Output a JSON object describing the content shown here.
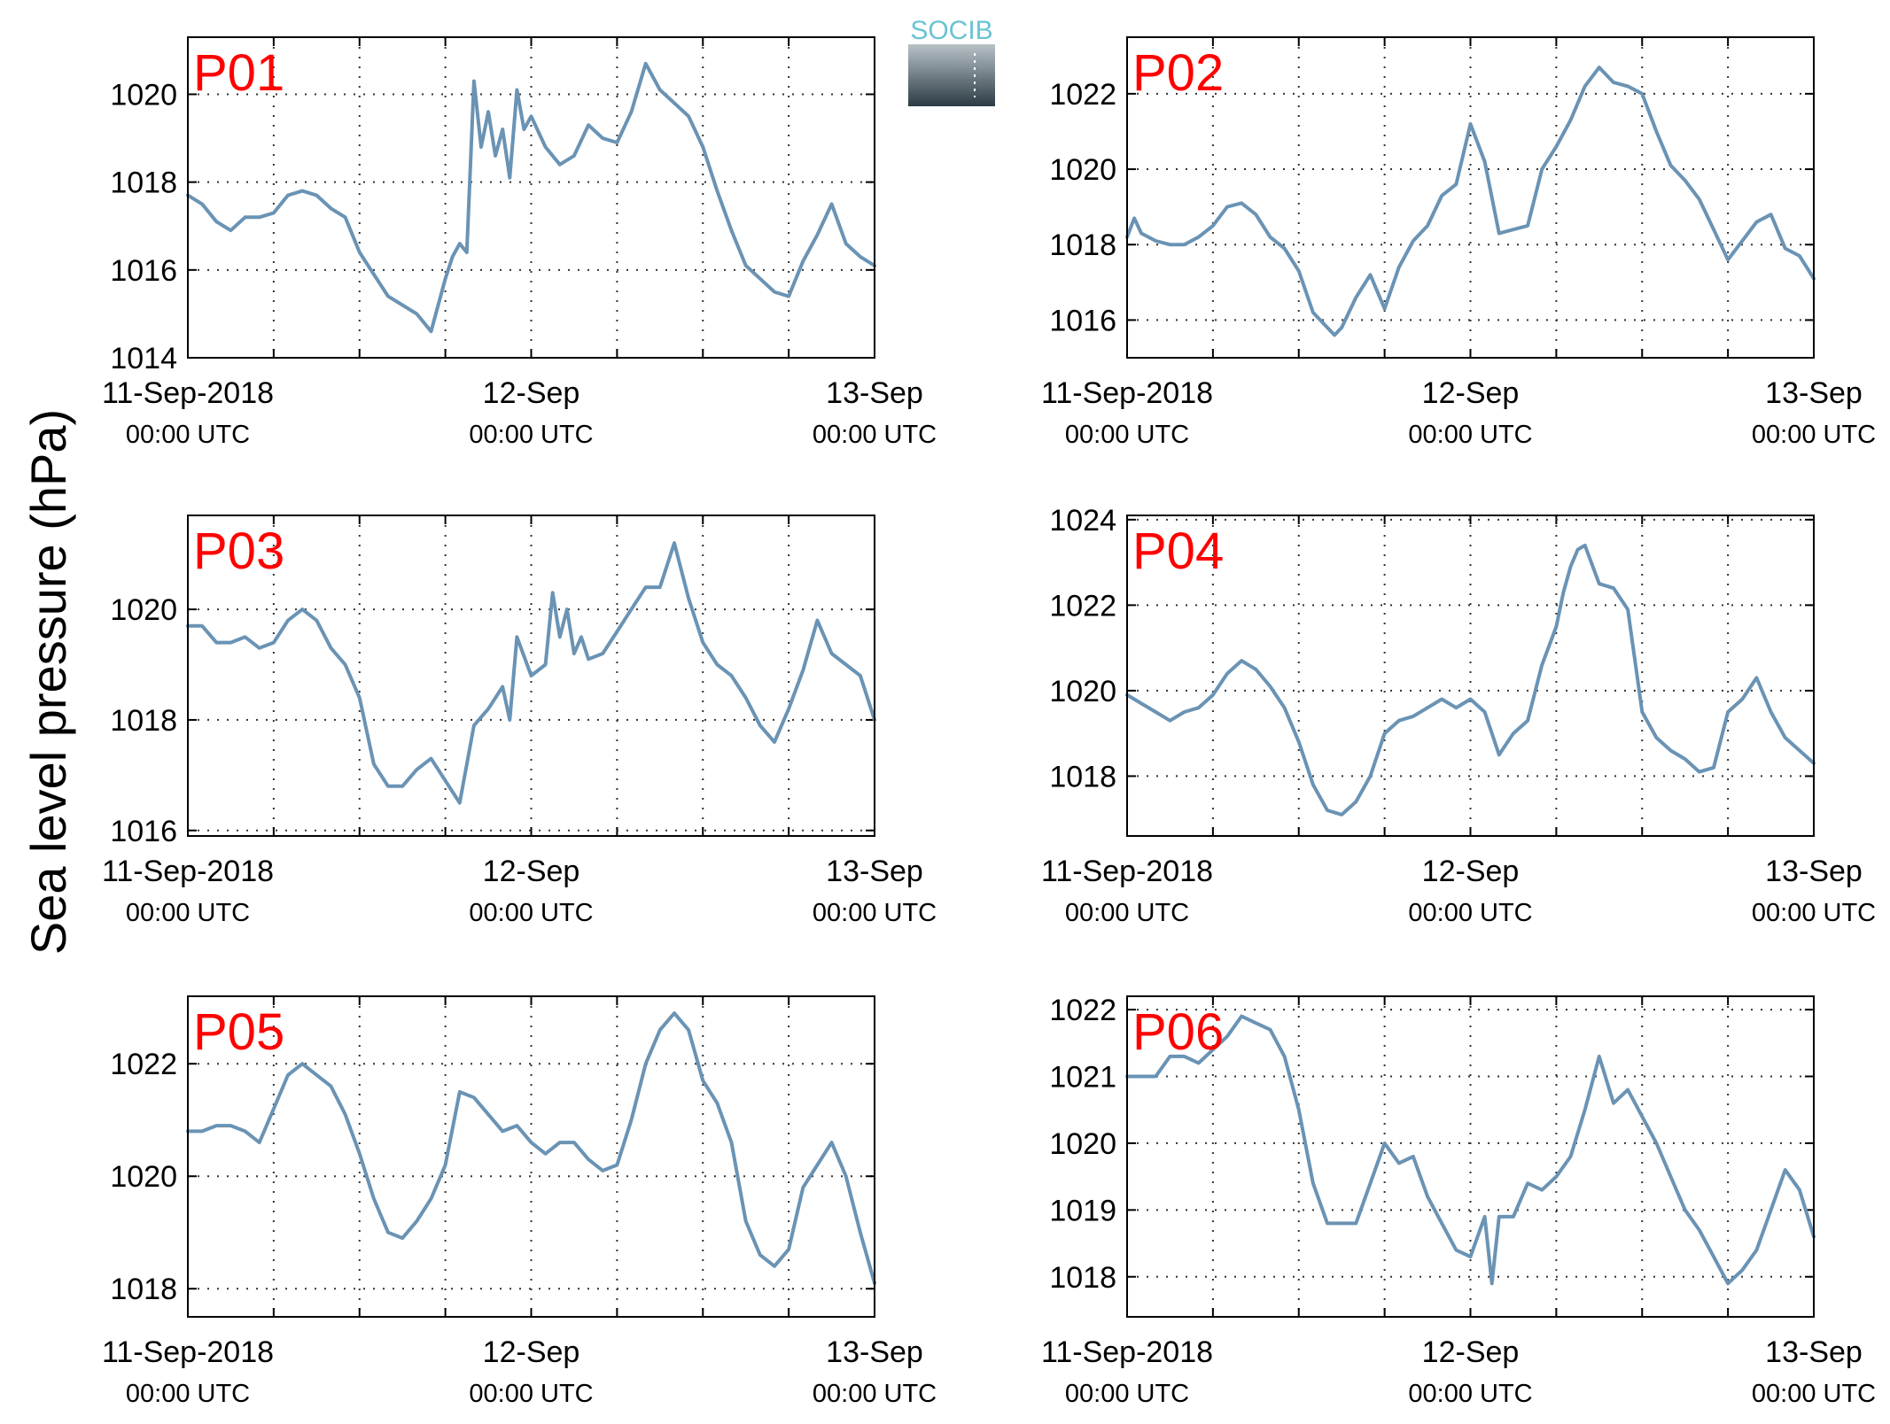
{
  "colors": {
    "series": "#6a93b4",
    "label": "#ff0000",
    "axis": "#000000",
    "grid": "#333333"
  },
  "logo": {
    "text": "SOCIB"
  },
  "ylabel": "Sea level pressure (hPa)",
  "chart_data": [
    {
      "type": "line",
      "label": "P01",
      "xlim": [
        0,
        48
      ],
      "ylim": [
        1014,
        1021.3
      ],
      "yticks": [
        1014,
        1016,
        1018,
        1020
      ],
      "xticks": [
        {
          "x": 0,
          "label": "11-Sep-2018",
          "sub": "00:00 UTC"
        },
        {
          "x": 24,
          "label": "12-Sep",
          "sub": "00:00 UTC"
        },
        {
          "x": 48,
          "label": "13-Sep",
          "sub": "00:00 UTC"
        }
      ],
      "x": [
        0,
        1,
        2,
        3,
        4,
        5,
        6,
        7,
        8,
        9,
        10,
        11,
        12,
        13,
        14,
        15,
        16,
        17,
        18,
        18.5,
        19,
        19.5,
        20,
        20.5,
        21,
        21.5,
        22,
        22.5,
        23,
        23.5,
        24,
        25,
        26,
        27,
        28,
        29,
        30,
        31,
        32,
        33,
        34,
        35,
        36,
        37,
        38,
        39,
        40,
        41,
        42,
        43,
        44,
        45,
        46,
        47,
        48
      ],
      "y": [
        1017.7,
        1017.5,
        1017.1,
        1016.9,
        1017.2,
        1017.2,
        1017.3,
        1017.7,
        1017.8,
        1017.7,
        1017.4,
        1017.2,
        1016.4,
        1015.9,
        1015.4,
        1015.2,
        1015.0,
        1014.6,
        1015.8,
        1016.3,
        1016.6,
        1016.4,
        1020.3,
        1018.8,
        1019.6,
        1018.6,
        1019.2,
        1018.1,
        1020.1,
        1019.2,
        1019.5,
        1018.8,
        1018.4,
        1018.6,
        1019.3,
        1019.0,
        1018.9,
        1019.6,
        1020.7,
        1020.1,
        1019.8,
        1019.5,
        1018.8,
        1017.8,
        1016.9,
        1016.1,
        1015.8,
        1015.5,
        1015.4,
        1016.2,
        1016.8,
        1017.5,
        1016.6,
        1016.3,
        1016.1
      ]
    },
    {
      "type": "line",
      "label": "P02",
      "xlim": [
        0,
        48
      ],
      "ylim": [
        1015,
        1023.5
      ],
      "yticks": [
        1016,
        1018,
        1020,
        1022
      ],
      "xticks": [
        {
          "x": 0,
          "label": "11-Sep-2018",
          "sub": "00:00 UTC"
        },
        {
          "x": 24,
          "label": "12-Sep",
          "sub": "00:00 UTC"
        },
        {
          "x": 48,
          "label": "13-Sep",
          "sub": "00:00 UTC"
        }
      ],
      "x": [
        0,
        0.5,
        1,
        2,
        3,
        4,
        5,
        6,
        7,
        8,
        9,
        10,
        11,
        12,
        13,
        14,
        14.5,
        15,
        16,
        17,
        18,
        19,
        20,
        21,
        22,
        23,
        24,
        25,
        26,
        27,
        28,
        29,
        30,
        31,
        32,
        33,
        34,
        35,
        36,
        37,
        38,
        39,
        40,
        41,
        42,
        43,
        44,
        45,
        46,
        47,
        48
      ],
      "y": [
        1018.2,
        1018.7,
        1018.3,
        1018.1,
        1018.0,
        1018.0,
        1018.2,
        1018.5,
        1019.0,
        1019.1,
        1018.8,
        1018.2,
        1017.9,
        1017.3,
        1016.2,
        1015.8,
        1015.6,
        1015.8,
        1016.6,
        1017.2,
        1016.3,
        1017.4,
        1018.1,
        1018.5,
        1019.3,
        1019.6,
        1021.2,
        1020.2,
        1018.3,
        1018.4,
        1018.5,
        1020.0,
        1020.6,
        1021.3,
        1022.2,
        1022.7,
        1022.3,
        1022.2,
        1022.0,
        1021.0,
        1020.1,
        1019.7,
        1019.2,
        1018.4,
        1017.6,
        1018.1,
        1018.6,
        1018.8,
        1017.9,
        1017.7,
        1017.1
      ]
    },
    {
      "type": "line",
      "label": "P03",
      "xlim": [
        0,
        48
      ],
      "ylim": [
        1015.9,
        1021.7
      ],
      "yticks": [
        1016,
        1018,
        1020
      ],
      "xticks": [
        {
          "x": 0,
          "label": "11-Sep-2018",
          "sub": "00:00 UTC"
        },
        {
          "x": 24,
          "label": "12-Sep",
          "sub": "00:00 UTC"
        },
        {
          "x": 48,
          "label": "13-Sep",
          "sub": "00:00 UTC"
        }
      ],
      "x": [
        0,
        1,
        2,
        3,
        4,
        5,
        6,
        7,
        8,
        9,
        10,
        11,
        12,
        13,
        14,
        15,
        16,
        17,
        18,
        19,
        20,
        21,
        22,
        22.5,
        23,
        24,
        25,
        25.5,
        26,
        26.5,
        27,
        27.5,
        28,
        29,
        30,
        31,
        32,
        33,
        34,
        35,
        36,
        37,
        38,
        39,
        40,
        41,
        42,
        43,
        44,
        45,
        46,
        47,
        48
      ],
      "y": [
        1019.7,
        1019.7,
        1019.4,
        1019.4,
        1019.5,
        1019.3,
        1019.4,
        1019.8,
        1020.0,
        1019.8,
        1019.3,
        1019.0,
        1018.4,
        1017.2,
        1016.8,
        1016.8,
        1017.1,
        1017.3,
        1016.9,
        1016.5,
        1017.9,
        1018.2,
        1018.6,
        1018.0,
        1019.5,
        1018.8,
        1019.0,
        1020.3,
        1019.5,
        1020.0,
        1019.2,
        1019.5,
        1019.1,
        1019.2,
        1019.6,
        1020.0,
        1020.4,
        1020.4,
        1021.2,
        1020.2,
        1019.4,
        1019.0,
        1018.8,
        1018.4,
        1017.9,
        1017.6,
        1018.2,
        1018.9,
        1019.8,
        1019.2,
        1019.0,
        1018.8,
        1018.0
      ]
    },
    {
      "type": "line",
      "label": "P04",
      "xlim": [
        0,
        48
      ],
      "ylim": [
        1016.6,
        1024.1
      ],
      "yticks": [
        1018,
        1020,
        1022,
        1024
      ],
      "xticks": [
        {
          "x": 0,
          "label": "11-Sep-2018",
          "sub": "00:00 UTC"
        },
        {
          "x": 24,
          "label": "12-Sep",
          "sub": "00:00 UTC"
        },
        {
          "x": 48,
          "label": "13-Sep",
          "sub": "00:00 UTC"
        }
      ],
      "x": [
        0,
        1,
        2,
        3,
        4,
        5,
        6,
        7,
        8,
        9,
        10,
        11,
        12,
        13,
        14,
        15,
        16,
        17,
        18,
        19,
        20,
        21,
        22,
        23,
        24,
        25,
        26,
        27,
        28,
        29,
        30,
        30.5,
        31,
        31.5,
        32,
        33,
        34,
        35,
        36,
        37,
        38,
        39,
        40,
        41,
        42,
        43,
        44,
        45,
        46,
        47,
        48
      ],
      "y": [
        1019.9,
        1019.7,
        1019.5,
        1019.3,
        1019.5,
        1019.6,
        1019.9,
        1020.4,
        1020.7,
        1020.5,
        1020.1,
        1019.6,
        1018.8,
        1017.8,
        1017.2,
        1017.1,
        1017.4,
        1018.0,
        1019.0,
        1019.3,
        1019.4,
        1019.6,
        1019.8,
        1019.6,
        1019.8,
        1019.5,
        1018.5,
        1019.0,
        1019.3,
        1020.6,
        1021.5,
        1022.3,
        1022.9,
        1023.3,
        1023.4,
        1022.5,
        1022.4,
        1021.9,
        1019.5,
        1018.9,
        1018.6,
        1018.4,
        1018.1,
        1018.2,
        1019.5,
        1019.8,
        1020.3,
        1019.5,
        1018.9,
        1018.6,
        1018.3
      ]
    },
    {
      "type": "line",
      "label": "P05",
      "xlim": [
        0,
        48
      ],
      "ylim": [
        1017.5,
        1023.2
      ],
      "yticks": [
        1018,
        1020,
        1022
      ],
      "xticks": [
        {
          "x": 0,
          "label": "11-Sep-2018",
          "sub": "00:00 UTC"
        },
        {
          "x": 24,
          "label": "12-Sep",
          "sub": "00:00 UTC"
        },
        {
          "x": 48,
          "label": "13-Sep",
          "sub": "00:00 UTC"
        }
      ],
      "x": [
        0,
        1,
        2,
        3,
        4,
        5,
        6,
        7,
        8,
        9,
        10,
        11,
        12,
        13,
        14,
        15,
        16,
        17,
        18,
        19,
        20,
        21,
        22,
        23,
        24,
        25,
        26,
        27,
        28,
        29,
        30,
        31,
        32,
        33,
        34,
        35,
        36,
        37,
        38,
        39,
        40,
        41,
        42,
        43,
        44,
        45,
        46,
        47,
        48
      ],
      "y": [
        1020.8,
        1020.8,
        1020.9,
        1020.9,
        1020.8,
        1020.6,
        1021.2,
        1021.8,
        1022.0,
        1021.8,
        1021.6,
        1021.1,
        1020.4,
        1019.6,
        1019.0,
        1018.9,
        1019.2,
        1019.6,
        1020.2,
        1021.5,
        1021.4,
        1021.1,
        1020.8,
        1020.9,
        1020.6,
        1020.4,
        1020.6,
        1020.6,
        1020.3,
        1020.1,
        1020.2,
        1021.0,
        1022.0,
        1022.6,
        1022.9,
        1022.6,
        1021.7,
        1021.3,
        1020.6,
        1019.2,
        1018.6,
        1018.4,
        1018.7,
        1019.8,
        1020.2,
        1020.6,
        1020.0,
        1019.0,
        1018.1
      ]
    },
    {
      "type": "line",
      "label": "P06",
      "xlim": [
        0,
        48
      ],
      "ylim": [
        1017.4,
        1022.2
      ],
      "yticks": [
        1018,
        1019,
        1020,
        1021,
        1022
      ],
      "xticks": [
        {
          "x": 0,
          "label": "11-Sep-2018",
          "sub": "00:00 UTC"
        },
        {
          "x": 24,
          "label": "12-Sep",
          "sub": "00:00 UTC"
        },
        {
          "x": 48,
          "label": "13-Sep",
          "sub": "00:00 UTC"
        }
      ],
      "x": [
        0,
        1,
        2,
        3,
        4,
        5,
        6,
        7,
        8,
        9,
        10,
        11,
        12,
        13,
        14,
        15,
        16,
        17,
        18,
        19,
        20,
        21,
        22,
        23,
        24,
        25,
        25.5,
        26,
        27,
        28,
        29,
        30,
        31,
        32,
        33,
        34,
        35,
        36,
        37,
        38,
        39,
        40,
        41,
        42,
        43,
        44,
        45,
        46,
        47,
        48
      ],
      "y": [
        1021.0,
        1021.0,
        1021.0,
        1021.3,
        1021.3,
        1021.2,
        1021.4,
        1021.6,
        1021.9,
        1021.8,
        1021.7,
        1021.3,
        1020.5,
        1019.4,
        1018.8,
        1018.8,
        1018.8,
        1019.4,
        1020.0,
        1019.7,
        1019.8,
        1019.2,
        1018.8,
        1018.4,
        1018.3,
        1018.9,
        1017.9,
        1018.9,
        1018.9,
        1019.4,
        1019.3,
        1019.5,
        1019.8,
        1020.5,
        1021.3,
        1020.6,
        1020.8,
        1020.4,
        1020.0,
        1019.5,
        1019.0,
        1018.7,
        1018.3,
        1017.9,
        1018.1,
        1018.4,
        1019.0,
        1019.6,
        1019.3,
        1018.6
      ]
    }
  ]
}
